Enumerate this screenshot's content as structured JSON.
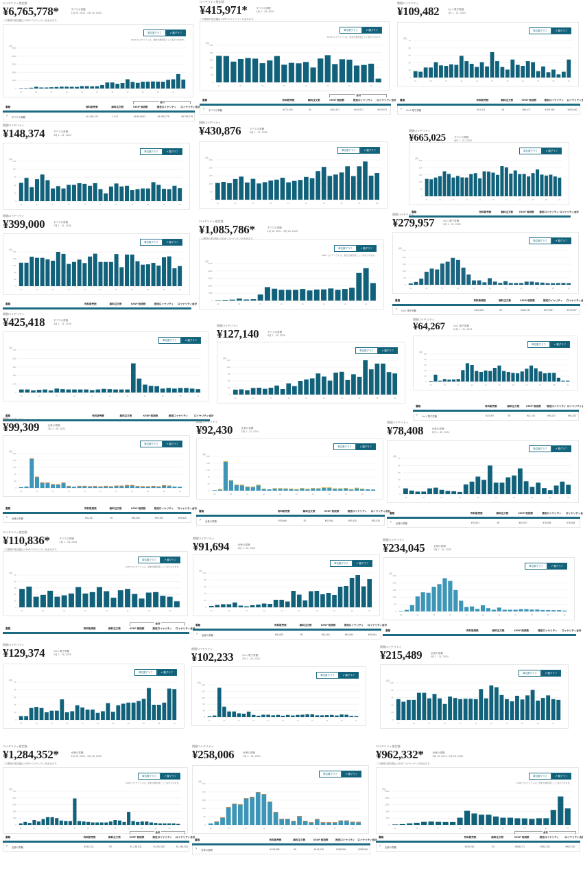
{
  "page": {
    "eyebrow_sales": "ロイヤリティ推定額",
    "eyebrow_period": "期間ロイヤリティ",
    "toggle_off": "単位数グラフ",
    "toggle_on": "✔ 額グラフ",
    "hint": "KENP ロイヤリティは、過去の推定値として表示されます。",
    "note": "この期間の推定額は KENP ロイヤリティを含みます。",
    "table_headers": [
      "書籍",
      "有料販売数",
      "無料注文数",
      "KENP 既読数",
      "推定ロイヤリティ",
      "ロイヤリティ合計"
    ],
    "table_group": "合計"
  },
  "panels": [
    {
      "amount": "¥6,765,778*",
      "meta1": "すべての書籍",
      "meta2": "1月 26, 2020 - 4月 25, 2025",
      "note": true,
      "table": true,
      "row": [
        "すべての書籍",
        "¥1,150,176",
        "7,412",
        "¥5,615,602",
        "¥6,765,778",
        "¥6,765,778"
      ]
    },
    {
      "amount": "¥415,971*",
      "meta1": "すべての書籍",
      "meta2": "4月 1 - 25, 2025",
      "note": true,
      "table": true,
      "row": [
        "すべての書籍",
        "¥171,300",
        "90",
        "¥244,671",
        "¥415,971",
        "¥415,971"
      ]
    },
    {
      "amount": "¥109,482",
      "meta1": "Vol.1 電子書籍",
      "meta2": "1月 1 - 31, 2024",
      "table": true,
      "row": [
        "Vol.1 電子書籍",
        "¥41,011",
        "45",
        "¥68,471",
        "¥109,482",
        "¥109,482"
      ]
    },
    {
      "amount": "¥148,374",
      "meta1": "すべての書籍",
      "meta2": "3月 1 - 31, 2024"
    },
    {
      "amount": "¥430,876",
      "meta1": "すべての書籍",
      "meta2": "5月 1 - 31, 2025"
    },
    {
      "amount": "¥665,025",
      "meta1": "すべての書籍",
      "meta2": "8月 1 - 31, 2024",
      "table": "head"
    },
    {
      "amount": "¥399,000",
      "meta1": "すべての書籍",
      "meta2": "7月 1 - 31, 2025",
      "table": "head"
    },
    {
      "amount": "¥1,085,786*",
      "meta1": "すべての書籍",
      "meta2": "4月 15, 2021 - 4月 25, 2025",
      "note": true
    },
    {
      "amount": "¥279,957",
      "meta1": "Vol.1 電子書籍",
      "meta2": "1月 1 - 31, 2025",
      "table": true,
      "row": [
        "Vol.1 電子書籍",
        "¥110,200",
        "90",
        "¥169,757",
        "¥279,957",
        "¥279,957"
      ]
    },
    {
      "amount": "¥425,418",
      "meta1": "すべての書籍",
      "meta2": "3月 1 - 31, 2025",
      "table": "head"
    },
    {
      "amount": "¥127,140",
      "meta1": "すべての書籍",
      "meta2": "6月 1 - 30, 2025"
    },
    {
      "amount": "¥64,267",
      "meta1": "Vol.1 電子書籍",
      "meta2": "12月 1 - 31, 2023",
      "table": true,
      "row": [
        "Vol.1 電子書籍",
        "¥23,057",
        "90",
        "¥41,210",
        "¥64,267",
        "¥64,267"
      ]
    },
    {
      "amount": "¥99,309",
      "meta1": "全巻の書籍",
      "meta2": "2月 1 - 29, 2024",
      "table": true,
      "row": [
        "全巻の書籍",
        "¥42,347",
        "90",
        "¥56,962",
        "¥99,309",
        "¥99,309"
      ]
    },
    {
      "amount": "¥92,430",
      "meta1": "全巻の書籍",
      "meta2": "3月 1 - 31, 2024",
      "table": true,
      "row": [
        "全巻の書籍",
        "¥39,466",
        "90",
        "¥52,964",
        "¥92,430",
        "¥92,430"
      ]
    },
    {
      "amount": "¥78,408",
      "meta1": "全巻の書籍",
      "meta2": "4月 1 - 30, 2024",
      "table": true,
      "row": [
        "全巻の書籍",
        "¥25,401",
        "90",
        "¥53,007",
        "¥78,408",
        "¥78,408"
      ]
    },
    {
      "amount": "¥110,836*",
      "meta1": "すべての書籍",
      "meta2": "4月 1 - 25, 2025",
      "note": true,
      "table": "head"
    },
    {
      "amount": "¥91,694",
      "meta1": "全巻の書籍",
      "meta2": "4月 1 - 30, 2023",
      "table": true,
      "row": [
        "全巻の書籍",
        "¥40,633",
        "90",
        "¥51,061",
        "¥91,694",
        "¥91,694"
      ]
    },
    {
      "amount": "¥234,045",
      "meta1": "全巻の書籍",
      "meta2": "1月 1 - 31, 2025",
      "table": "head"
    },
    {
      "amount": "¥129,374",
      "meta1": "Vol.1 電子書籍",
      "meta2": "2月 1 - 28, 2025",
      "table": "head"
    },
    {
      "amount": "¥102,233",
      "meta1": "Vol.1 電子書籍",
      "meta2": "2月 1 - 29, 2024",
      "table": "head"
    },
    {
      "amount": "¥215,489",
      "meta1": "全巻の書籍",
      "meta2": "5月 1 - 31, 2024"
    },
    {
      "amount": "¥1,284,352*",
      "meta1": "全巻の書籍",
      "meta2": "1月 26, 2024 - 4月 25, 2025",
      "note": true,
      "table": true,
      "row": [
        "全巻の書籍",
        "¥146,321",
        "90",
        "¥1,138,031",
        "¥1,284,352",
        "¥1,284,352"
      ]
    },
    {
      "amount": "¥258,006",
      "meta1": "全巻の書籍",
      "meta2": "1月 1 - 31, 2024",
      "table": true,
      "row": [
        "全巻の書籍",
        "¥108,880",
        "90",
        "¥149,126",
        "¥258,006",
        "¥258,006"
      ]
    },
    {
      "amount": "¥962,332*",
      "meta1": "全巻の書籍",
      "meta2": "4月 15, 2021 - 4月 25, 2025",
      "note": true,
      "table": true,
      "row": [
        "全巻の書籍",
        "¥106,261",
        "90",
        "¥856,071",
        "¥962,332",
        "¥962,332"
      ]
    }
  ],
  "chart_data": [
    {
      "type": "bar",
      "title": "¥6,765,778*",
      "ylabel": "推定ロイヤリティ",
      "ylim": [
        0,
        700000
      ],
      "color": "#11617a",
      "values": [
        2000,
        3000,
        14000,
        30000,
        18000,
        18000,
        22000,
        26000,
        32000,
        32000,
        30000,
        28000,
        42000,
        42000,
        38000,
        40000,
        60000,
        105000,
        105000,
        82000,
        95000,
        160000,
        115000,
        98000,
        118000,
        120000,
        122000,
        120000,
        118000,
        150000,
        160000,
        250000,
        155000
      ]
    },
    {
      "type": "bar",
      "title": "¥415,971*",
      "ylabel": "推定ロイヤリティ",
      "ylim": [
        0,
        30000
      ],
      "color": "#11617a",
      "values": [
        21500,
        21300,
        16800,
        18900,
        19700,
        19200,
        15500,
        17700,
        21300,
        14300,
        15800,
        15400,
        16500,
        12000,
        19300,
        22000,
        14800,
        18700,
        18400,
        13600,
        14100,
        15100,
        3000
      ]
    },
    {
      "type": "bar",
      "title": "¥109,482",
      "ylabel": "推定ロイヤリティ",
      "ylim": [
        0,
        7000
      ],
      "color": "#11617a",
      "values": [
        1200,
        1100,
        1900,
        1900,
        2900,
        2300,
        2200,
        2500,
        2400,
        4100,
        3100,
        2600,
        2000,
        2900,
        2100,
        4800,
        3100,
        2000,
        1500,
        3400,
        2400,
        2200,
        3100,
        2900,
        1200,
        2100,
        1000,
        1500,
        600,
        1100,
        3400
      ]
    },
    {
      "type": "bar",
      "title": "¥148,374",
      "ylabel": "推定ロイヤリティ",
      "ylim": [
        0,
        12000
      ],
      "color": "#11617a",
      "values": [
        5500,
        7000,
        4200,
        6600,
        8000,
        6300,
        3800,
        4500,
        3800,
        4900,
        4900,
        5400,
        5200,
        4600,
        5400,
        3600,
        2300,
        4400,
        5300,
        4400,
        4600,
        3300,
        3600,
        3800,
        3800,
        5700,
        4900,
        3700,
        3600,
        4600,
        3900
      ]
    },
    {
      "type": "bar",
      "title": "¥430,876",
      "ylabel": "推定ロイヤリティ",
      "ylim": [
        0,
        25000
      ],
      "color": "#11617a",
      "values": [
        10500,
        11200,
        10400,
        13000,
        14500,
        10800,
        13100,
        10200,
        11000,
        12000,
        12600,
        13800,
        10900,
        11800,
        12400,
        14300,
        13500,
        18000,
        20600,
        14900,
        15800,
        17100,
        21000,
        14800,
        21000,
        24000,
        15100,
        16800
      ]
    },
    {
      "type": "bar",
      "title": "¥665,025",
      "ylabel": "推定ロイヤリティ",
      "ylim": [
        0,
        40000
      ],
      "color": "#11617a",
      "values": [
        19500,
        19000,
        21000,
        22500,
        28000,
        25000,
        21000,
        22800,
        21200,
        21000,
        24800,
        25900,
        20100,
        28000,
        27700,
        26500,
        24000,
        33800,
        32400,
        25400,
        28900,
        24800,
        25000,
        22200,
        26000,
        30200,
        24300,
        23200,
        24200,
        22200,
        20900
      ]
    },
    {
      "type": "bar",
      "title": "¥399,000",
      "ylabel": "推定ロイヤリティ",
      "ylim": [
        0,
        19000
      ],
      "color": "#11617a",
      "values": [
        13000,
        13000,
        16300,
        15700,
        15700,
        14800,
        14100,
        19300,
        17900,
        12300,
        13400,
        14700,
        12800,
        16400,
        18000,
        13400,
        13400,
        13400,
        17800,
        10500,
        17500,
        17500,
        13800,
        11900,
        12100,
        12900,
        11400,
        16000,
        16500,
        9900,
        11100
      ]
    },
    {
      "type": "bar",
      "title": "¥1,085,786*",
      "ylabel": "推定ロイヤリティ",
      "ylim": [
        0,
        275000
      ],
      "color": "#11617a",
      "values": [
        1000,
        5000,
        7000,
        15000,
        8000,
        10000,
        45000,
        100000,
        88000,
        80000,
        80000,
        80000,
        86000,
        75000,
        82000,
        83000,
        90000,
        80000,
        86000,
        95000,
        205000,
        240000,
        130000
      ]
    },
    {
      "type": "bar",
      "title": "¥279,957",
      "ylabel": "推定ロイヤリティ",
      "ylim": [
        0,
        25000
      ],
      "color": "#1c6581",
      "values": [
        1000,
        2100,
        4500,
        9500,
        11800,
        11200,
        15500,
        16800,
        19600,
        18100,
        12500,
        7500,
        3200,
        3200,
        1800,
        4800,
        2300,
        1400,
        2600,
        1300,
        1300,
        1300,
        2300,
        2300,
        1800,
        1600,
        1200,
        1200,
        1300,
        1400,
        1200
      ]
    },
    {
      "type": "bar",
      "title": "¥425,418",
      "ylabel": "推定ロイヤリティ",
      "ylim": [
        0,
        70000
      ],
      "color": "#11617a",
      "values": [
        5000,
        5000,
        3500,
        4500,
        5000,
        3500,
        6500,
        5500,
        5000,
        5000,
        5000,
        5000,
        4000,
        5000,
        6000,
        5500,
        5000,
        5000,
        5000,
        48000,
        23000,
        13000,
        11000,
        10500,
        6500,
        7500,
        6500,
        7500,
        7500,
        6500,
        5500
      ]
    },
    {
      "type": "bar",
      "title": "¥127,140",
      "ylabel": "推定ロイヤリティ",
      "ylim": [
        0,
        12500
      ],
      "color": "#11617a",
      "values": [
        1800,
        1900,
        1600,
        2400,
        2500,
        2100,
        2500,
        3300,
        2000,
        4100,
        3100,
        5000,
        5500,
        5900,
        7700,
        6600,
        5100,
        8000,
        8300,
        5300,
        7400,
        6500,
        12500,
        9200,
        11300,
        11300,
        8200,
        7700
      ]
    },
    {
      "type": "bar",
      "title": "¥64,267",
      "ylabel": "推定ロイヤリティ",
      "ylim": [
        0,
        6000
      ],
      "color": "#11617a",
      "values": [
        150,
        1500,
        200,
        550,
        400,
        450,
        550,
        2500,
        4000,
        3600,
        2300,
        2100,
        2400,
        2300,
        3000,
        3500,
        2300,
        2100,
        1900,
        1800,
        2200,
        2800,
        3500,
        2900,
        2200,
        1800,
        1900,
        1900,
        800,
        200,
        200
      ]
    },
    {
      "type": "bar",
      "title": "¥99,309",
      "ylabel": "推定ロイヤリティ",
      "ylim": [
        0,
        18000
      ],
      "color": "#3d95b7",
      "accent": "#e08b4f",
      "values": [
        400,
        700,
        15500,
        5900,
        2900,
        2800,
        2000,
        1900,
        2800,
        1100,
        600,
        1100,
        1100,
        900,
        1000,
        800,
        1100,
        900,
        1200,
        1200,
        1500,
        1500,
        1000,
        900,
        900,
        1100,
        800,
        1400,
        1200,
        700,
        600
      ]
    },
    {
      "type": "bar",
      "title": "¥92,430",
      "ylabel": "推定ロイヤリティ",
      "ylim": [
        0,
        18000
      ],
      "color": "#3d95b7",
      "accent": "#e9c04f",
      "values": [
        300,
        900,
        15500,
        5600,
        3200,
        3100,
        2200,
        2100,
        3100,
        1100,
        700,
        1300,
        1300,
        1200,
        1100,
        900,
        1400,
        1000,
        1400,
        1300,
        1800,
        1700,
        1200,
        1200,
        1400,
        900,
        1500,
        1100,
        700,
        600
      ]
    },
    {
      "type": "bar",
      "title": "¥78,408",
      "ylabel": "推定ロイヤリティ",
      "ylim": [
        0,
        5000
      ],
      "color": "#11617a",
      "values": [
        800,
        500,
        350,
        350,
        800,
        900,
        600,
        450,
        400,
        300,
        1350,
        1750,
        2450,
        2000,
        4000,
        1600,
        1600,
        2350,
        2600,
        3600,
        1800,
        1000,
        1600,
        850,
        550,
        1200,
        1750,
        1300
      ]
    },
    {
      "type": "bar",
      "title": "¥110,836*",
      "ylabel": "推定ロイヤリティ",
      "ylim": [
        0,
        7000
      ],
      "color": "#11617a",
      "values": [
        4000,
        4500,
        2300,
        2700,
        3600,
        2300,
        2600,
        3000,
        4400,
        3000,
        3300,
        4400,
        3500,
        2100,
        3700,
        4000,
        2900,
        1900,
        3200,
        3300,
        2500,
        2300,
        1300
      ]
    },
    {
      "type": "bar",
      "title": "¥91,694",
      "ylabel": "推定ロイヤリティ",
      "ylim": [
        0,
        10000
      ],
      "color": "#11617a",
      "values": [
        400,
        700,
        900,
        900,
        1400,
        500,
        300,
        600,
        800,
        1100,
        1000,
        2200,
        2200,
        1700,
        4800,
        3700,
        2000,
        4700,
        4800,
        3800,
        4200,
        3600,
        6000,
        6200,
        8600,
        9400,
        6100,
        8200
      ]
    },
    {
      "type": "bar",
      "title": "¥234,045",
      "ylabel": "推定ロイヤリティ",
      "ylim": [
        0,
        25000
      ],
      "color": "#3d95b7",
      "values": [
        300,
        1100,
        4400,
        10500,
        13400,
        13100,
        17300,
        19100,
        23300,
        21400,
        15000,
        7500,
        3100,
        3500,
        1800,
        4300,
        2300,
        1200,
        2700,
        1200,
        1200,
        1200,
        1600,
        1600,
        1300,
        1300,
        1000,
        1000,
        900,
        900,
        600
      ]
    },
    {
      "type": "bar",
      "title": "¥129,374",
      "ylabel": "推定ロイヤリティ",
      "ylim": [
        0,
        7000
      ],
      "color": "#11617a",
      "values": [
        700,
        700,
        2200,
        2400,
        2200,
        1400,
        1700,
        1700,
        3800,
        1400,
        1600,
        2700,
        2300,
        1900,
        1900,
        1300,
        1600,
        3100,
        1500,
        2700,
        3000,
        3200,
        3200,
        3500,
        3900,
        5900,
        2800,
        2800,
        3200,
        5800,
        5700
      ]
    },
    {
      "type": "bar",
      "title": "¥102,233",
      "ylabel": "推定ロイヤリティ",
      "ylim": [
        0,
        16000
      ],
      "color": "#11617a",
      "values": [
        400,
        800,
        14600,
        5200,
        2800,
        2800,
        1900,
        1700,
        2700,
        1100,
        700,
        1200,
        1200,
        900,
        1100,
        700,
        1100,
        800,
        1100,
        1200,
        1400,
        1400,
        900,
        900,
        1000,
        1100,
        800,
        1300,
        1200,
        600,
        500
      ]
    },
    {
      "type": "bar",
      "title": "¥215,489",
      "ylabel": "推定ロイヤリティ",
      "ylim": [
        0,
        10000
      ],
      "color": "#11617a",
      "values": [
        5600,
        4900,
        5400,
        5400,
        7300,
        7300,
        5800,
        7000,
        5800,
        4300,
        6300,
        5900,
        5600,
        5700,
        5700,
        5600,
        8300,
        5800,
        9300,
        8800,
        6700,
        5600,
        5000,
        6500,
        5500,
        6600,
        8100,
        5200,
        5900,
        6600,
        5600,
        5400
      ]
    },
    {
      "type": "bar",
      "title": "¥1,284,352*",
      "ylabel": "推定ロイヤリティ",
      "ylim": [
        0,
        70000
      ],
      "color": "#11617a",
      "values": [
        3000,
        6000,
        4000,
        10000,
        7000,
        12000,
        16000,
        16000,
        14000,
        9000,
        8000,
        8000,
        55000,
        8000,
        7000,
        6000,
        5000,
        5000,
        5000,
        5000,
        7000,
        10000,
        9000,
        6000,
        27000,
        8000,
        6000,
        7000,
        7000,
        5000,
        4000,
        3000,
        3000,
        3000,
        3000,
        2000
      ]
    },
    {
      "type": "bar",
      "title": "¥258,006",
      "ylabel": "推定ロイヤリティ",
      "ylim": [
        0,
        30000
      ],
      "color": "#3d95b7",
      "accent": "#c98b55",
      "values": [
        1000,
        2500,
        5500,
        13000,
        15500,
        15000,
        19500,
        20500,
        24000,
        22500,
        17000,
        9500,
        4500,
        4500,
        3000,
        6500,
        3000,
        2000,
        4300,
        2000,
        2000,
        2000,
        3200,
        3200,
        2300,
        2200
      ]
    },
    {
      "type": "bar",
      "title": "¥962,332*",
      "ylabel": "推定ロイヤリティ",
      "ylim": [
        0,
        225000
      ],
      "color": "#11617a",
      "values": [
        0,
        5000,
        10000,
        14000,
        20000,
        22000,
        20000,
        19000,
        19000,
        48000,
        94000,
        76000,
        68000,
        68000,
        56000,
        48000,
        48000,
        44000,
        43000,
        40000,
        44000,
        44000,
        100000,
        190000,
        110000
      ]
    }
  ]
}
